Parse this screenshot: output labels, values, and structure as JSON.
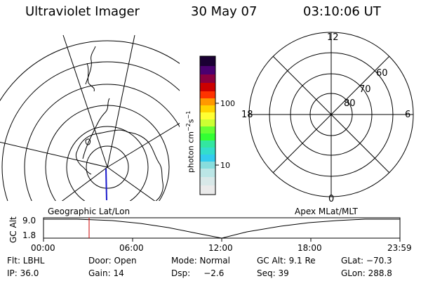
{
  "header": {
    "instrument": "Ultraviolet Imager",
    "date": "30 May 07",
    "time": "03:10:06 UT"
  },
  "left_map": {
    "label": "Geographic Lat/Lon"
  },
  "right_map": {
    "label": "Apex MLat/MLT",
    "mlt_labels": {
      "top": "12",
      "left": "18",
      "right": "6",
      "bottom": "0"
    },
    "lat_labels": [
      "60",
      "70",
      "80"
    ]
  },
  "colorbar": {
    "unit_label": "photon cm",
    "unit_sup1": "−2",
    "unit_mid": "s",
    "unit_sup2": "−1",
    "tick_labels": [
      "100",
      "10"
    ]
  },
  "altitude_plot": {
    "ylabel": "GC Alt",
    "y_ticks": [
      "9.0",
      "1.8"
    ],
    "x_ticks": [
      "00:00",
      "06:00",
      "12:00",
      "18:00",
      "23:59"
    ],
    "current_time_marker": "03:10",
    "marker_color": "#cc0000"
  },
  "status": {
    "filter": "Flt: LBHL",
    "ip": "IP: 36.0",
    "door": "Door: Open",
    "gain": "Gain: 14",
    "mode": "Mode: Normal",
    "dsp": "Dsp:     −2.6",
    "gc_alt": "GC Alt: 9.1 Re",
    "seq": "Seq: 39",
    "glat": "GLat: −70.3",
    "glon": "GLon: 288.8"
  }
}
